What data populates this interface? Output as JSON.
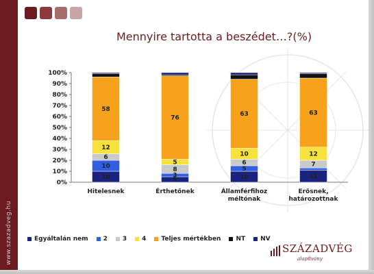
{
  "slide": {
    "title": "Mennyire tartotta a beszédet…?(%)",
    "sidebar_url": "www.szazadveg.hu",
    "logo_name": "SZÁZADVÉG",
    "logo_sub": "alapítvány"
  },
  "colors": {
    "sidebar": "#6b1a1f",
    "accent": "#6b1a1f"
  },
  "chart_data": {
    "type": "bar",
    "stacked": true,
    "title": "Mennyire tartotta a beszédet…?(%)",
    "categories": [
      [
        "Hitelesnek"
      ],
      [
        "Érthetőnek"
      ],
      [
        "Államférfihoz",
        "méltónak"
      ],
      [
        "Erősnek,",
        "határozottnak"
      ]
    ],
    "ylim": [
      0,
      100
    ],
    "yticks": [
      "0%",
      "10%",
      "20%",
      "30%",
      "40%",
      "50%",
      "60%",
      "70%",
      "80%",
      "90%",
      "100%"
    ],
    "legend_position": "bottom",
    "series": [
      {
        "name": "Egyáltalán nem",
        "color": "#1a237e",
        "values": [
          10,
          5,
          10,
          11
        ],
        "labels": [
          "10",
          "5",
          "10",
          "11"
        ]
      },
      {
        "name": "2",
        "color": "#2f5fe0",
        "values": [
          10,
          3,
          5,
          2
        ],
        "labels": [
          "10",
          "3",
          "5",
          ""
        ]
      },
      {
        "name": "3",
        "color": "#c9c9c9",
        "values": [
          6,
          8,
          6,
          7
        ],
        "labels": [
          "6",
          "8",
          "6",
          "7"
        ]
      },
      {
        "name": "4",
        "color": "#f7e13b",
        "values": [
          12,
          5,
          10,
          12
        ],
        "labels": [
          "12",
          "5",
          "10",
          "12"
        ]
      },
      {
        "name": "Teljes mértékben",
        "color": "#f7a21b",
        "values": [
          58,
          76,
          63,
          63
        ],
        "labels": [
          "58",
          "76",
          "63",
          "63"
        ]
      },
      {
        "name": "NT",
        "color": "#111111",
        "values": [
          3,
          1,
          4,
          4
        ],
        "labels": [
          "",
          "",
          "",
          ""
        ]
      },
      {
        "name": "NV",
        "color": "#1a237e",
        "values": [
          1,
          2,
          2,
          1
        ],
        "labels": [
          "",
          "",
          "",
          ""
        ]
      }
    ]
  }
}
